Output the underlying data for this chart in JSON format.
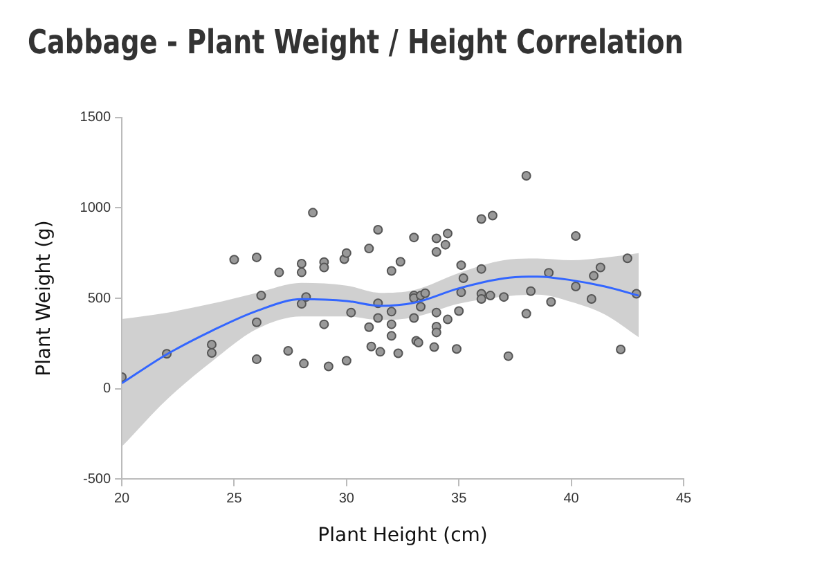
{
  "chart_data": {
    "type": "scatter",
    "title": "Cabbage - Plant Weight / Height Correlation",
    "xlabel": "Plant Height (cm)",
    "ylabel": "Plant Weight (g)",
    "xlim": [
      20,
      45
    ],
    "xticks": [
      20,
      25,
      30,
      35,
      40,
      45
    ],
    "ylim": [
      -500,
      1500
    ],
    "yticks": [
      -500,
      0,
      500,
      1000,
      1500
    ],
    "grid": false,
    "legend": false,
    "marker": "circle",
    "series": [
      {
        "type": "line",
        "color": "#3366ff",
        "marker": "none",
        "x": [
          20,
          22,
          24,
          26,
          28,
          30,
          31.5,
          33,
          35,
          37,
          38.5,
          40,
          41.5,
          43
        ],
        "values": [
          30,
          190,
          320,
          430,
          495,
          485,
          458,
          475,
          555,
          610,
          620,
          600,
          565,
          515
        ],
        "upper": [
          385,
          420,
          470,
          530,
          585,
          570,
          530,
          545,
          640,
          710,
          720,
          710,
          725,
          750
        ],
        "lower": [
          -320,
          -60,
          150,
          330,
          400,
          400,
          380,
          395,
          470,
          510,
          520,
          480,
          410,
          285
        ]
      },
      {
        "type": "scatter",
        "color": "#999999",
        "x": [
          20,
          22,
          24,
          24,
          25,
          26,
          26,
          26,
          26.2,
          27,
          27.4,
          28,
          28,
          28,
          28.2,
          28.1,
          28.5,
          29,
          29,
          29,
          29.2,
          29.9,
          30,
          30,
          30.2,
          31,
          31,
          31.1,
          31.4,
          31.4,
          31.4,
          31.5,
          32,
          32,
          32,
          32,
          32.3,
          32.4,
          33,
          33,
          33,
          33,
          33.1,
          33.2,
          33.3,
          33.3,
          33.5,
          34,
          34,
          34,
          34,
          34,
          33.9,
          34.4,
          34.5,
          34.5,
          34.9,
          35,
          35.1,
          35.1,
          35.2,
          36,
          36,
          36,
          36,
          36.4,
          36.5,
          37,
          37.2,
          38,
          38,
          38.2,
          39,
          39.1,
          40.2,
          40.2,
          40.9,
          41,
          41.3,
          42.2,
          42.5,
          42.9
        ],
        "values": [
          64,
          193,
          244,
          198,
          713,
          726,
          367,
          163,
          515,
          643,
          209,
          691,
          643,
          469,
          507,
          139,
          973,
          700,
          670,
          356,
          123,
          716,
          750,
          155,
          421,
          775,
          340,
          233,
          879,
          472,
          391,
          204,
          651,
          426,
          356,
          292,
          196,
          702,
          836,
          515,
          501,
          391,
          265,
          255,
          515,
          453,
          528,
          831,
          756,
          421,
          343,
          311,
          230,
          796,
          858,
          383,
          220,
          429,
          683,
          533,
          611,
          938,
          662,
          525,
          496,
          515,
          957,
          507,
          180,
          1177,
          415,
          539,
          641,
          480,
          844,
          565,
          496,
          624,
          670,
          217,
          721,
          525
        ]
      }
    ]
  }
}
